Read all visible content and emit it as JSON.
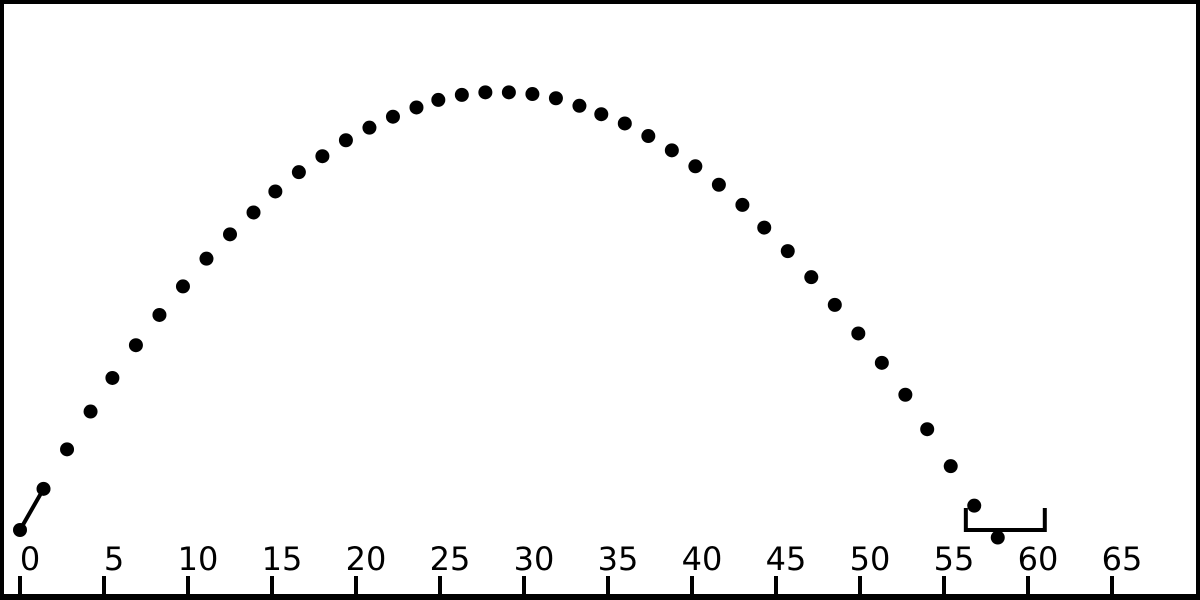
{
  "colors": {
    "background": "#ffffff",
    "ink": "#000000"
  },
  "ruler": {
    "tick_labels": [
      "0",
      "5",
      "10",
      "15",
      "20",
      "25",
      "30",
      "35",
      "40",
      "45",
      "50",
      "55",
      "60",
      "65"
    ],
    "min": 0,
    "max": 65,
    "step": 5
  },
  "launcher": {
    "from": {
      "x": 0,
      "h": 0
    },
    "to": {
      "x": 1.4,
      "h": 2.45
    }
  },
  "trajectory": {
    "points": [
      {
        "x": 2.8,
        "h": 4.8
      },
      {
        "x": 4.2,
        "h": 7.05
      },
      {
        "x": 5.5,
        "h": 9.05
      },
      {
        "x": 6.9,
        "h": 11.0
      },
      {
        "x": 8.3,
        "h": 12.8
      },
      {
        "x": 9.7,
        "h": 14.5
      },
      {
        "x": 11.1,
        "h": 16.15
      },
      {
        "x": 12.5,
        "h": 17.6
      },
      {
        "x": 13.9,
        "h": 18.9
      },
      {
        "x": 15.2,
        "h": 20.15
      },
      {
        "x": 16.6,
        "h": 21.3
      },
      {
        "x": 18.0,
        "h": 22.25
      },
      {
        "x": 19.4,
        "h": 23.2
      },
      {
        "x": 20.8,
        "h": 23.95
      },
      {
        "x": 22.2,
        "h": 24.6
      },
      {
        "x": 23.6,
        "h": 25.15
      },
      {
        "x": 24.9,
        "h": 25.6
      },
      {
        "x": 26.3,
        "h": 25.9
      },
      {
        "x": 27.7,
        "h": 26.05
      },
      {
        "x": 29.1,
        "h": 26.05
      },
      {
        "x": 30.5,
        "h": 25.95
      },
      {
        "x": 31.9,
        "h": 25.7
      },
      {
        "x": 33.3,
        "h": 25.25
      },
      {
        "x": 34.6,
        "h": 24.75
      },
      {
        "x": 36.0,
        "h": 24.2
      },
      {
        "x": 37.4,
        "h": 23.45
      },
      {
        "x": 38.8,
        "h": 22.6
      },
      {
        "x": 40.2,
        "h": 21.65
      },
      {
        "x": 41.6,
        "h": 20.55
      },
      {
        "x": 43.0,
        "h": 19.35
      },
      {
        "x": 44.3,
        "h": 18.0
      },
      {
        "x": 45.7,
        "h": 16.6
      },
      {
        "x": 47.1,
        "h": 15.05
      },
      {
        "x": 48.5,
        "h": 13.4
      },
      {
        "x": 49.9,
        "h": 11.7
      },
      {
        "x": 51.3,
        "h": 9.95
      },
      {
        "x": 52.7,
        "h": 8.05
      },
      {
        "x": 54.0,
        "h": 6.0
      },
      {
        "x": 55.4,
        "h": 3.8
      },
      {
        "x": 56.8,
        "h": 1.45
      },
      {
        "x": 58.2,
        "h": -0.45
      }
    ]
  },
  "target": {
    "x_start": 56.3,
    "x_end": 61.0
  }
}
